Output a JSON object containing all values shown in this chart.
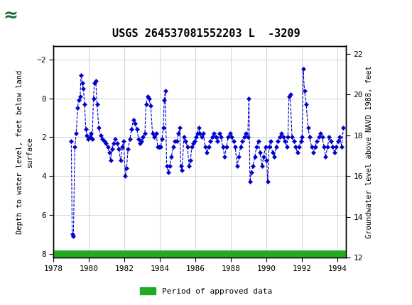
{
  "title": "USGS 264537081552203 L  -3209",
  "ylabel_left": "Depth to water level, feet below land\nsurface",
  "ylabel_right": "Groundwater level above NAVD 1988, feet",
  "ylim_left": [
    8.2,
    -2.7
  ],
  "ylim_right": [
    12.0,
    22.4
  ],
  "xlim": [
    1978,
    1994.5
  ],
  "yticks_left": [
    -2.0,
    0.0,
    2.0,
    4.0,
    6.0,
    8.0
  ],
  "yticks_right": [
    12.0,
    14.0,
    16.0,
    18.0,
    20.0,
    22.0
  ],
  "xticks": [
    1978,
    1980,
    1982,
    1984,
    1986,
    1988,
    1990,
    1992,
    1994
  ],
  "header_color": "#1a6633",
  "line_color": "#0000cc",
  "marker_color": "#0000cc",
  "green_bar_color": "#22aa22",
  "background_color": "#ffffff",
  "grid_color": "#cccccc",
  "legend_label": "Period of approved data",
  "pts": [
    [
      1979.0,
      2.2
    ],
    [
      1979.05,
      7.0
    ],
    [
      1979.12,
      7.1
    ],
    [
      1979.2,
      2.5
    ],
    [
      1979.28,
      1.8
    ],
    [
      1979.35,
      0.5
    ],
    [
      1979.42,
      0.1
    ],
    [
      1979.5,
      -0.1
    ],
    [
      1979.55,
      -1.2
    ],
    [
      1979.62,
      -0.8
    ],
    [
      1979.68,
      -0.5
    ],
    [
      1979.75,
      0.3
    ],
    [
      1979.82,
      1.6
    ],
    [
      1979.88,
      1.9
    ],
    [
      1979.95,
      2.1
    ],
    [
      1980.05,
      2.0
    ],
    [
      1980.12,
      1.8
    ],
    [
      1980.18,
      2.1
    ],
    [
      1980.25,
      0.0
    ],
    [
      1980.3,
      -0.8
    ],
    [
      1980.38,
      -0.9
    ],
    [
      1980.45,
      0.3
    ],
    [
      1980.55,
      1.5
    ],
    [
      1980.65,
      1.9
    ],
    [
      1980.75,
      2.1
    ],
    [
      1980.85,
      2.2
    ],
    [
      1980.95,
      2.3
    ],
    [
      1981.05,
      2.5
    ],
    [
      1981.15,
      2.8
    ],
    [
      1981.22,
      3.2
    ],
    [
      1981.3,
      2.6
    ],
    [
      1981.38,
      2.3
    ],
    [
      1981.48,
      2.1
    ],
    [
      1981.58,
      2.3
    ],
    [
      1981.68,
      2.6
    ],
    [
      1981.78,
      3.2
    ],
    [
      1981.88,
      2.5
    ],
    [
      1981.95,
      2.2
    ],
    [
      1982.05,
      4.0
    ],
    [
      1982.12,
      3.6
    ],
    [
      1982.2,
      2.6
    ],
    [
      1982.3,
      2.1
    ],
    [
      1982.4,
      1.6
    ],
    [
      1982.5,
      1.1
    ],
    [
      1982.6,
      1.3
    ],
    [
      1982.7,
      1.6
    ],
    [
      1982.8,
      2.1
    ],
    [
      1982.88,
      2.3
    ],
    [
      1982.95,
      2.2
    ],
    [
      1983.05,
      2.0
    ],
    [
      1983.15,
      1.8
    ],
    [
      1983.22,
      0.3
    ],
    [
      1983.3,
      -0.1
    ],
    [
      1983.38,
      0.0
    ],
    [
      1983.48,
      0.4
    ],
    [
      1983.58,
      1.8
    ],
    [
      1983.68,
      2.0
    ],
    [
      1983.78,
      1.8
    ],
    [
      1983.88,
      2.5
    ],
    [
      1983.95,
      2.5
    ],
    [
      1984.05,
      2.5
    ],
    [
      1984.12,
      2.1
    ],
    [
      1984.18,
      1.5
    ],
    [
      1984.25,
      0.1
    ],
    [
      1984.3,
      -0.4
    ],
    [
      1984.38,
      3.5
    ],
    [
      1984.48,
      3.8
    ],
    [
      1984.55,
      3.5
    ],
    [
      1984.65,
      3.0
    ],
    [
      1984.75,
      2.5
    ],
    [
      1984.85,
      2.2
    ],
    [
      1984.95,
      2.2
    ],
    [
      1985.05,
      1.8
    ],
    [
      1985.12,
      1.5
    ],
    [
      1985.18,
      3.5
    ],
    [
      1985.25,
      3.7
    ],
    [
      1985.35,
      2.0
    ],
    [
      1985.45,
      2.2
    ],
    [
      1985.55,
      2.5
    ],
    [
      1985.65,
      3.5
    ],
    [
      1985.72,
      3.2
    ],
    [
      1985.8,
      2.5
    ],
    [
      1985.88,
      2.3
    ],
    [
      1985.95,
      2.2
    ],
    [
      1986.05,
      2.0
    ],
    [
      1986.12,
      1.8
    ],
    [
      1986.18,
      1.5
    ],
    [
      1986.25,
      1.8
    ],
    [
      1986.35,
      2.0
    ],
    [
      1986.45,
      1.8
    ],
    [
      1986.55,
      2.5
    ],
    [
      1986.65,
      2.8
    ],
    [
      1986.75,
      2.5
    ],
    [
      1986.85,
      2.2
    ],
    [
      1986.95,
      2.0
    ],
    [
      1987.05,
      1.8
    ],
    [
      1987.15,
      2.0
    ],
    [
      1987.25,
      2.2
    ],
    [
      1987.35,
      1.8
    ],
    [
      1987.45,
      2.0
    ],
    [
      1987.55,
      2.5
    ],
    [
      1987.65,
      3.0
    ],
    [
      1987.75,
      2.5
    ],
    [
      1987.85,
      2.0
    ],
    [
      1987.95,
      1.8
    ],
    [
      1988.05,
      2.0
    ],
    [
      1988.15,
      2.2
    ],
    [
      1988.25,
      2.5
    ],
    [
      1988.35,
      3.5
    ],
    [
      1988.45,
      3.0
    ],
    [
      1988.55,
      2.5
    ],
    [
      1988.65,
      2.2
    ],
    [
      1988.75,
      2.0
    ],
    [
      1988.85,
      1.8
    ],
    [
      1988.95,
      2.0
    ],
    [
      1989.02,
      0.0
    ],
    [
      1989.08,
      4.3
    ],
    [
      1989.15,
      3.8
    ],
    [
      1989.25,
      3.5
    ],
    [
      1989.35,
      3.0
    ],
    [
      1989.45,
      2.5
    ],
    [
      1989.55,
      2.2
    ],
    [
      1989.65,
      2.8
    ],
    [
      1989.75,
      3.5
    ],
    [
      1989.85,
      3.0
    ],
    [
      1989.95,
      2.5
    ],
    [
      1990.02,
      3.2
    ],
    [
      1990.08,
      4.3
    ],
    [
      1990.15,
      2.5
    ],
    [
      1990.25,
      2.2
    ],
    [
      1990.35,
      2.8
    ],
    [
      1990.45,
      3.0
    ],
    [
      1990.55,
      2.5
    ],
    [
      1990.65,
      2.2
    ],
    [
      1990.75,
      2.0
    ],
    [
      1990.85,
      1.8
    ],
    [
      1990.95,
      2.0
    ],
    [
      1991.05,
      2.2
    ],
    [
      1991.15,
      2.5
    ],
    [
      1991.22,
      2.0
    ],
    [
      1991.28,
      -0.1
    ],
    [
      1991.35,
      -0.2
    ],
    [
      1991.45,
      2.0
    ],
    [
      1991.55,
      2.2
    ],
    [
      1991.65,
      2.5
    ],
    [
      1991.75,
      2.8
    ],
    [
      1991.85,
      2.5
    ],
    [
      1991.95,
      2.2
    ],
    [
      1992.02,
      2.0
    ],
    [
      1992.08,
      -1.5
    ],
    [
      1992.15,
      -0.4
    ],
    [
      1992.25,
      0.3
    ],
    [
      1992.35,
      1.5
    ],
    [
      1992.45,
      2.0
    ],
    [
      1992.55,
      2.5
    ],
    [
      1992.65,
      2.8
    ],
    [
      1992.75,
      2.5
    ],
    [
      1992.85,
      2.2
    ],
    [
      1992.95,
      2.0
    ],
    [
      1993.05,
      1.8
    ],
    [
      1993.15,
      2.0
    ],
    [
      1993.25,
      2.5
    ],
    [
      1993.35,
      3.0
    ],
    [
      1993.45,
      2.5
    ],
    [
      1993.55,
      2.0
    ],
    [
      1993.65,
      2.2
    ],
    [
      1993.75,
      2.5
    ],
    [
      1993.85,
      2.8
    ],
    [
      1993.95,
      2.5
    ],
    [
      1994.05,
      2.2
    ],
    [
      1994.15,
      2.0
    ],
    [
      1994.25,
      2.5
    ],
    [
      1994.35,
      1.5
    ]
  ]
}
